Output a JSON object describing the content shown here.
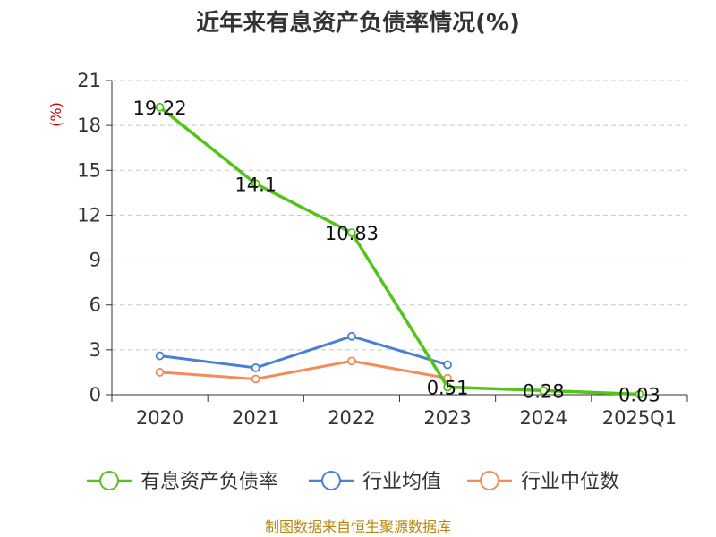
{
  "chart_data": {
    "type": "line",
    "title": "近年来有息资产负债率情况(%)",
    "unit_label": "(%)",
    "categories": [
      "2020",
      "2021",
      "2022",
      "2023",
      "2024",
      "2025Q1"
    ],
    "ylim": [
      0,
      21
    ],
    "yticks": [
      0,
      3,
      6,
      9,
      12,
      15,
      18,
      21
    ],
    "grid": true,
    "legend_position": "bottom",
    "series": [
      {
        "name": "有息资产负债率",
        "color": "#52c41a",
        "values": [
          19.22,
          14.1,
          10.83,
          0.51,
          0.28,
          0.03
        ],
        "labels": [
          "19.22",
          "14.1",
          "10.83",
          "0.51",
          "0.28",
          "0.03"
        ]
      },
      {
        "name": "行业均值",
        "color": "#4a7fd6",
        "values": [
          2.6,
          1.8,
          3.9,
          2.0,
          null,
          null
        ]
      },
      {
        "name": "行业中位数",
        "color": "#f28c5a",
        "values": [
          1.5,
          1.05,
          2.25,
          1.1,
          null,
          null
        ]
      }
    ],
    "source": "制图数据来自恒生聚源数据库"
  }
}
